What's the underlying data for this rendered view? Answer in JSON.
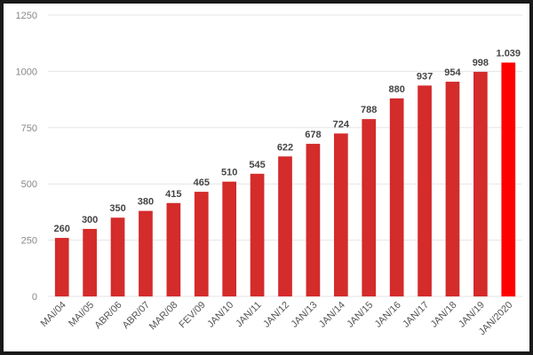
{
  "chart_data": {
    "type": "bar",
    "categories": [
      "MAI/04",
      "MAI/05",
      "ABR/06",
      "ABR/07",
      "MAR/08",
      "FEV/09",
      "JAN/10",
      "JAN/11",
      "JAN/12",
      "JAN/13",
      "JAN/14",
      "JAN/15",
      "JAN/16",
      "JAN/17",
      "JAN/18",
      "JAN/19",
      "JAN/2020"
    ],
    "values": [
      260,
      300,
      350,
      380,
      415,
      465,
      510,
      545,
      622,
      678,
      724,
      788,
      880,
      937,
      954,
      998,
      1039
    ],
    "value_labels": [
      "260",
      "300",
      "350",
      "380",
      "415",
      "465",
      "510",
      "545",
      "622",
      "678",
      "724",
      "788",
      "880",
      "937",
      "954",
      "998",
      "1.039"
    ],
    "title": "",
    "xlabel": "",
    "ylabel": "",
    "ylim": [
      0,
      1250
    ],
    "yticks": [
      0,
      250,
      500,
      750,
      1000,
      1250
    ],
    "ytick_labels": [
      "0",
      "250",
      "500",
      "750",
      "1000",
      "1250"
    ],
    "grid": true,
    "legend": "none",
    "colors": {
      "bar": "#d42b2b",
      "highlight_bar": "#ff0000",
      "grid": "#e6e6e6",
      "frame": "#1a1a1a"
    }
  }
}
